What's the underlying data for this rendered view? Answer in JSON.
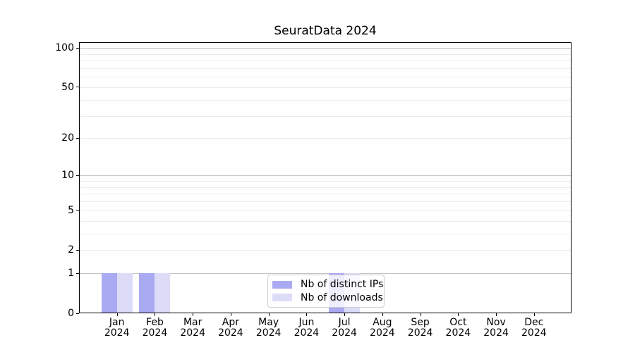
{
  "chart_data": {
    "type": "bar",
    "title": "SeuratData 2024",
    "x_axis": {
      "year_label": "2024",
      "categories": [
        "Jan",
        "Feb",
        "Mar",
        "Apr",
        "May",
        "Jun",
        "Jul",
        "Aug",
        "Sep",
        "Oct",
        "Nov",
        "Dec"
      ]
    },
    "y_axis": {
      "scale": "log1p",
      "ylim": [
        0,
        110
      ],
      "tick_labels": [
        "100",
        "50",
        "20",
        "10",
        "5",
        "2",
        "1",
        "0"
      ],
      "tick_values": [
        100,
        50,
        20,
        10,
        5,
        2,
        1,
        0
      ],
      "major_gridlines": [
        1,
        10,
        100
      ],
      "minor_gridlines": [
        2,
        3,
        4,
        5,
        6,
        7,
        8,
        9,
        20,
        30,
        40,
        50,
        60,
        70,
        80,
        90
      ]
    },
    "series": [
      {
        "name": "Nb of distinct IPs",
        "color": "#aaaaf2",
        "values": [
          1,
          1,
          0,
          0,
          0,
          0,
          1,
          0,
          0,
          0,
          0,
          0
        ]
      },
      {
        "name": "Nb of downloads",
        "color": "#dcdcf8",
        "values": [
          1,
          1,
          0,
          0,
          0,
          0,
          1,
          0,
          0,
          0,
          0,
          0
        ]
      }
    ],
    "legend": {
      "entries": [
        "Nb of distinct IPs",
        "Nb of downloads"
      ],
      "position": "lower center of plot"
    },
    "grid": true
  },
  "colors": {
    "major_grid": "#c3c3c3",
    "minor_grid": "#ebebeb",
    "spine": "#000000",
    "text": "#000000",
    "legend_border": "#cccccc",
    "legend_bg": "rgba(255,255,255,0.8)"
  }
}
